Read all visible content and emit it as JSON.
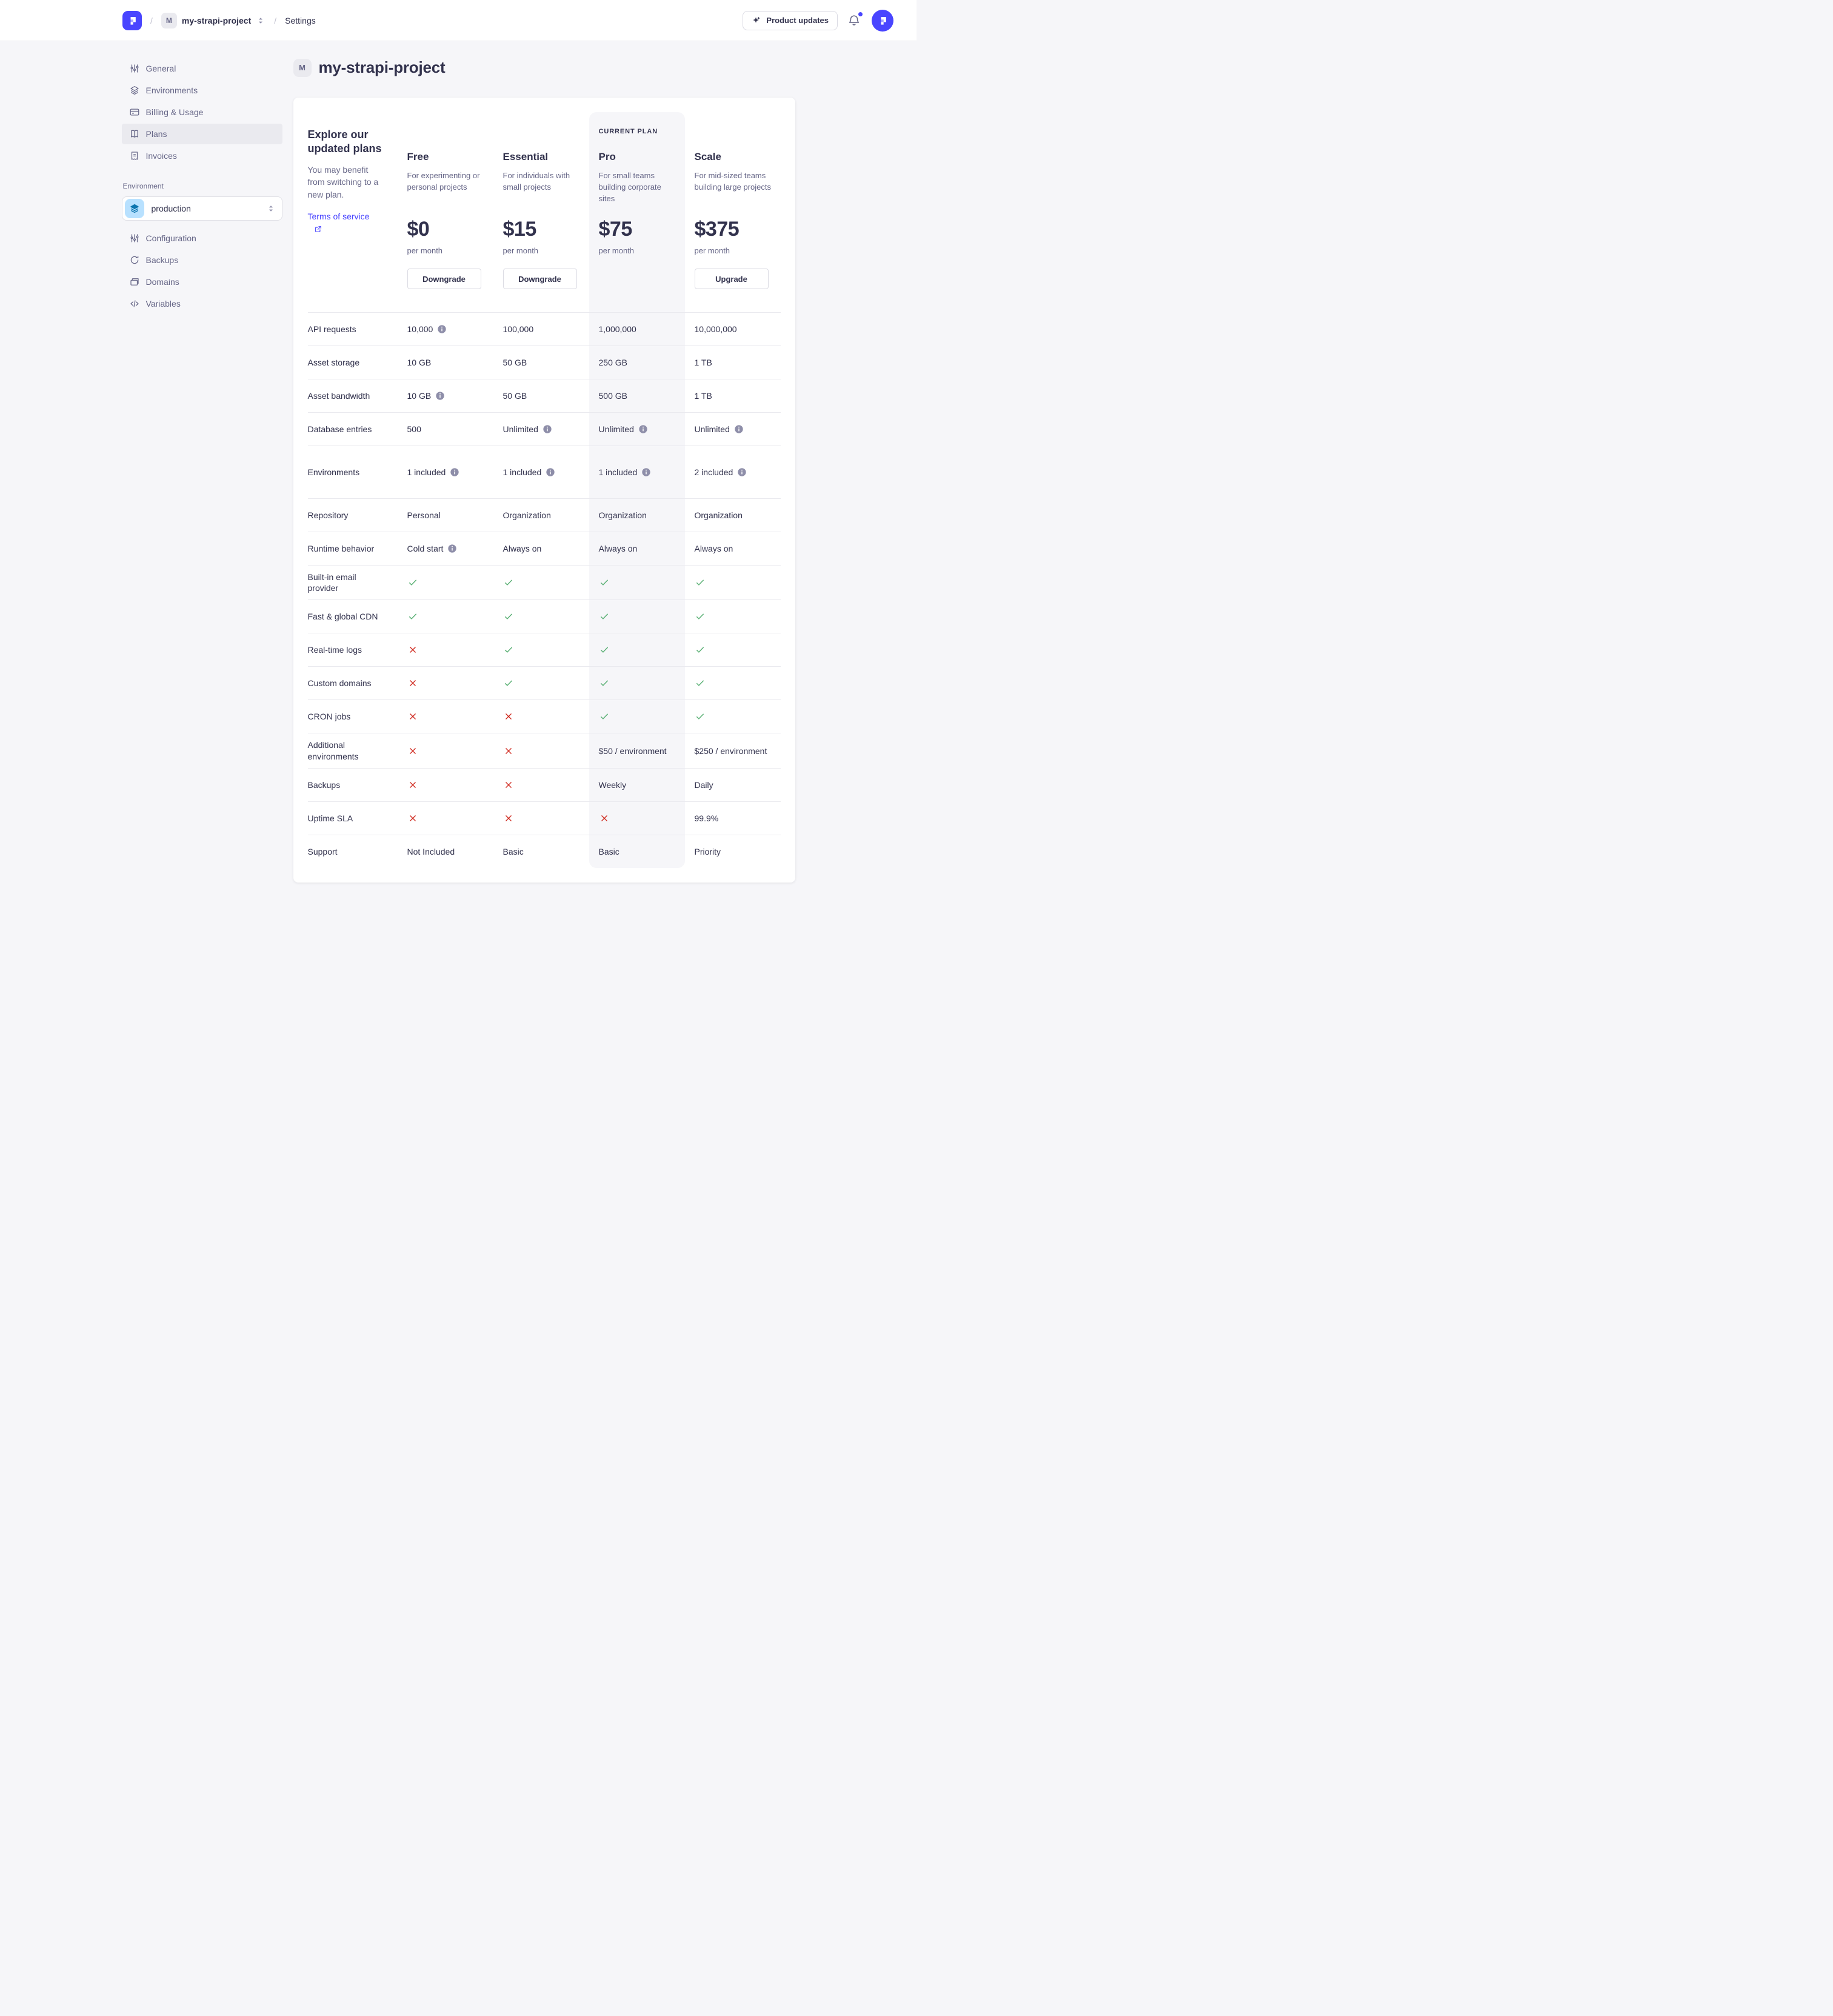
{
  "header": {
    "breadcrumb": {
      "separator": "/",
      "project_initial": "M",
      "project": "my-strapi-project",
      "section": "Settings"
    },
    "product_updates_label": "Product updates"
  },
  "sidebar": {
    "items": [
      {
        "label": "General",
        "icon": "sliders-icon",
        "active": false
      },
      {
        "label": "Environments",
        "icon": "layers-icon",
        "active": false
      },
      {
        "label": "Billing & Usage",
        "icon": "credit-card-icon",
        "active": false
      },
      {
        "label": "Plans",
        "icon": "plans-icon",
        "active": true
      },
      {
        "label": "Invoices",
        "icon": "invoice-icon",
        "active": false
      }
    ],
    "environment_section": {
      "label": "Environment",
      "selected": "production",
      "selected_icon": "layers-icon",
      "items": [
        {
          "label": "Configuration",
          "icon": "sliders-icon"
        },
        {
          "label": "Backups",
          "icon": "refresh-icon"
        },
        {
          "label": "Domains",
          "icon": "stack-icon"
        },
        {
          "label": "Variables",
          "icon": "code-icon"
        }
      ]
    }
  },
  "page": {
    "badge": "M",
    "title": "my-strapi-project"
  },
  "plans_card": {
    "intro": {
      "heading": "Explore our updated plans",
      "body": "You may benefit from switching to a new plan.",
      "link": "Terms of service"
    },
    "current_plan_label": "CURRENT PLAN",
    "plans": [
      {
        "name": "Free",
        "description": "For experimenting or personal projects",
        "price": "$0",
        "period": "per month",
        "action": "Downgrade",
        "current": false
      },
      {
        "name": "Essential",
        "description": "For individuals with small projects",
        "price": "$15",
        "period": "per month",
        "action": "Downgrade",
        "current": false
      },
      {
        "name": "Pro",
        "description": "For small teams building corporate sites",
        "price": "$75",
        "period": "per month",
        "action": null,
        "current": true
      },
      {
        "name": "Scale",
        "description": "For mid-sized teams building large projects",
        "price": "$375",
        "period": "per month",
        "action": "Upgrade",
        "current": false
      }
    ],
    "features": [
      {
        "label": "API requests",
        "values": [
          {
            "text": "10,000",
            "info": true
          },
          {
            "text": "100,000"
          },
          {
            "text": "1,000,000"
          },
          {
            "text": "10,000,000"
          }
        ]
      },
      {
        "label": "Asset storage",
        "values": [
          {
            "text": "10 GB"
          },
          {
            "text": "50 GB"
          },
          {
            "text": "250 GB"
          },
          {
            "text": "1 TB"
          }
        ]
      },
      {
        "label": "Asset bandwidth",
        "values": [
          {
            "text": "10 GB",
            "info": true
          },
          {
            "text": "50 GB"
          },
          {
            "text": "500 GB"
          },
          {
            "text": "1 TB"
          }
        ]
      },
      {
        "label": "Database entries",
        "values": [
          {
            "text": "500"
          },
          {
            "text": "Unlimited",
            "info": true
          },
          {
            "text": "Unlimited",
            "info": true
          },
          {
            "text": "Unlimited",
            "info": true
          }
        ]
      },
      {
        "label": "Environments",
        "tall": true,
        "values": [
          {
            "text": "1 included",
            "info": true
          },
          {
            "text": "1 included",
            "info": true
          },
          {
            "text": "1 included",
            "info": true
          },
          {
            "text": "2 included",
            "info": true
          }
        ]
      },
      {
        "label": "Repository",
        "values": [
          {
            "text": "Personal"
          },
          {
            "text": "Organization"
          },
          {
            "text": "Organization"
          },
          {
            "text": "Organization"
          }
        ]
      },
      {
        "label": "Runtime behavior",
        "values": [
          {
            "text": "Cold start",
            "info": true
          },
          {
            "text": "Always on"
          },
          {
            "text": "Always on"
          },
          {
            "text": "Always on"
          }
        ]
      },
      {
        "label": "Built-in email provider",
        "values": [
          {
            "icon": "check"
          },
          {
            "icon": "check"
          },
          {
            "icon": "check"
          },
          {
            "icon": "check"
          }
        ]
      },
      {
        "label": "Fast & global CDN",
        "values": [
          {
            "icon": "check"
          },
          {
            "icon": "check"
          },
          {
            "icon": "check"
          },
          {
            "icon": "check"
          }
        ]
      },
      {
        "label": "Real-time logs",
        "values": [
          {
            "icon": "cross"
          },
          {
            "icon": "check"
          },
          {
            "icon": "check"
          },
          {
            "icon": "check"
          }
        ]
      },
      {
        "label": "Custom domains",
        "values": [
          {
            "icon": "cross"
          },
          {
            "icon": "check"
          },
          {
            "icon": "check"
          },
          {
            "icon": "check"
          }
        ]
      },
      {
        "label": "CRON jobs",
        "values": [
          {
            "icon": "cross"
          },
          {
            "icon": "cross"
          },
          {
            "icon": "check"
          },
          {
            "icon": "check"
          }
        ]
      },
      {
        "label": "Additional environments",
        "values": [
          {
            "icon": "cross"
          },
          {
            "icon": "cross"
          },
          {
            "text": "$50 / environment"
          },
          {
            "text": "$250 / environment"
          }
        ]
      },
      {
        "label": "Backups",
        "values": [
          {
            "icon": "cross"
          },
          {
            "icon": "cross"
          },
          {
            "text": "Weekly"
          },
          {
            "text": "Daily"
          }
        ]
      },
      {
        "label": "Uptime SLA",
        "values": [
          {
            "icon": "cross"
          },
          {
            "icon": "cross"
          },
          {
            "icon": "cross"
          },
          {
            "text": "99.9%"
          }
        ]
      },
      {
        "label": "Support",
        "values": [
          {
            "text": "Not Included"
          },
          {
            "text": "Basic"
          },
          {
            "text": "Basic"
          },
          {
            "text": "Priority"
          }
        ]
      }
    ]
  },
  "colors": {
    "brand": "#4945ff",
    "success_check": "#5cb176",
    "danger_cross": "#d02b20",
    "info_icon": "#8e8ea9",
    "pro_column_bg": "#f6f6f9",
    "page_bg": "#f6f6f9"
  }
}
